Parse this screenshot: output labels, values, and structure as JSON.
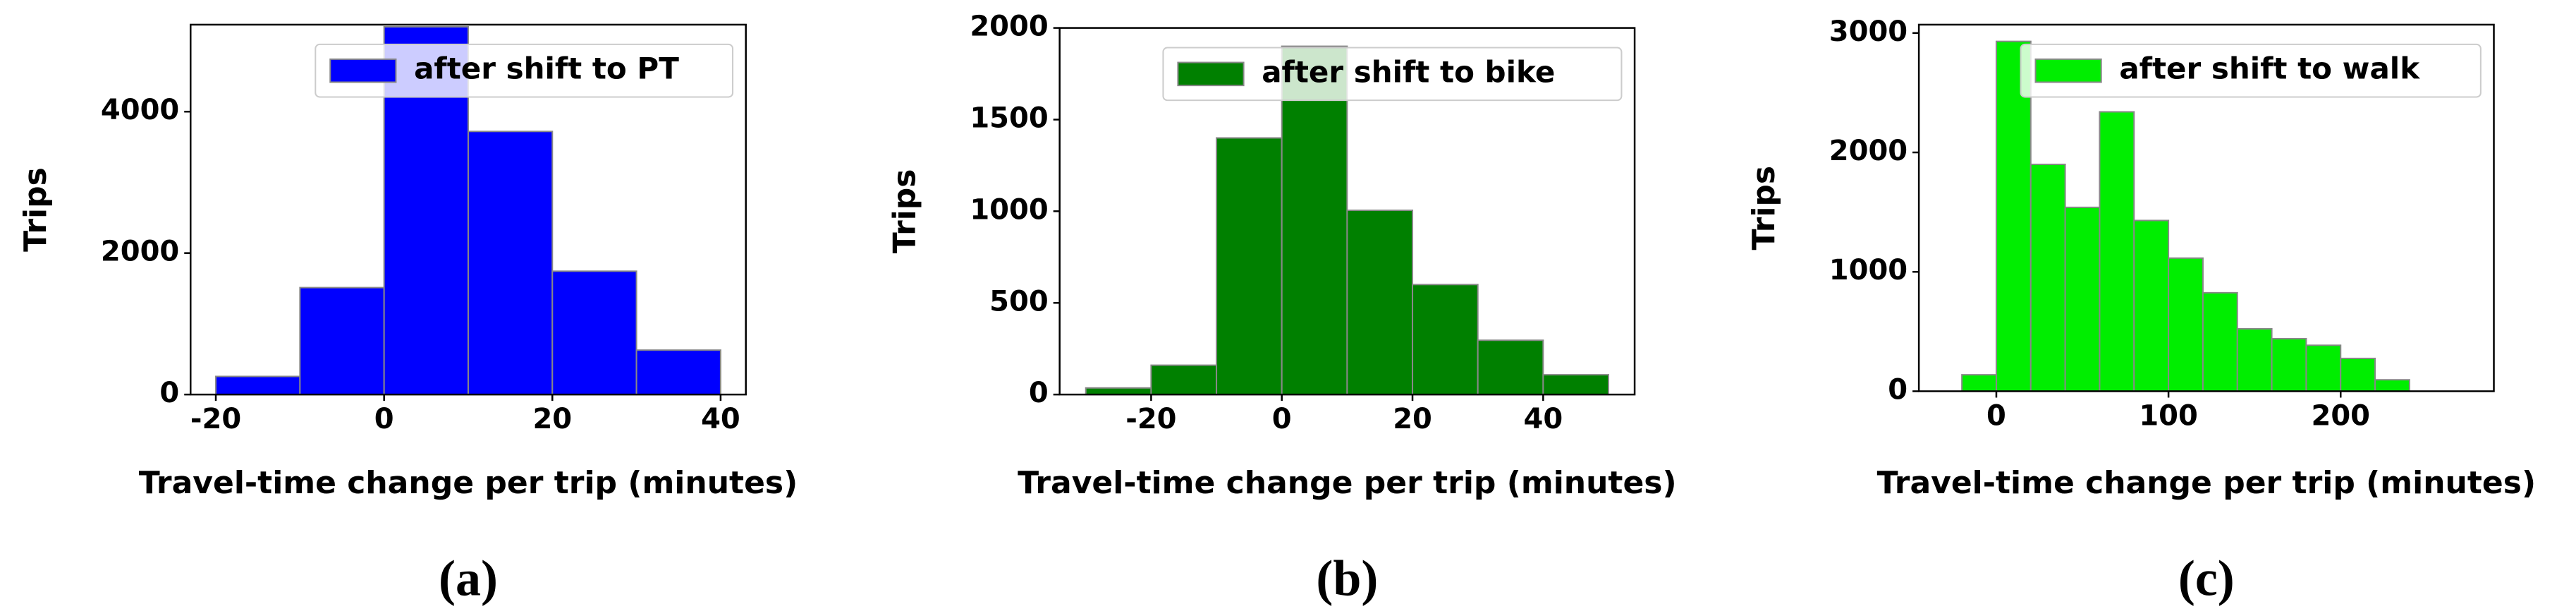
{
  "chart_data": [
    {
      "type": "histogram",
      "caption": "(a)",
      "xlabel": "Travel-time change per trip (minutes)",
      "ylabel": "Trips",
      "series": [
        {
          "name": "after shift to PT",
          "color": "#0000ff",
          "values": [
            256,
            1512,
            5200,
            3720,
            1744,
            628
          ]
        }
      ],
      "bins": [
        -20,
        -10,
        0,
        10,
        20,
        30,
        40
      ],
      "xlim": [
        -23,
        43
      ],
      "xticks": [
        -20,
        0,
        20,
        40
      ],
      "ylim": [
        0,
        5230
      ],
      "yticks": [
        0,
        2000,
        4000
      ],
      "legend": "upper right"
    },
    {
      "type": "histogram",
      "caption": "(b)",
      "xlabel": "Travel-time change per trip (minutes)",
      "ylabel": "Trips",
      "series": [
        {
          "name": "after shift to bike",
          "color": "#008000",
          "values": [
            36,
            160,
            1400,
            1900,
            1005,
            600,
            296,
            108
          ]
        }
      ],
      "bins": [
        -30,
        -20,
        -10,
        0,
        10,
        20,
        30,
        40,
        50
      ],
      "xlim": [
        -34,
        54
      ],
      "xticks": [
        -20,
        0,
        20,
        40
      ],
      "ylim": [
        0,
        2000
      ],
      "yticks": [
        0,
        500,
        1000,
        1500,
        2000
      ],
      "legend": "upper right"
    },
    {
      "type": "histogram",
      "caption": "(c)",
      "xlabel": "Travel-time change per trip (minutes)",
      "ylabel": "Trips",
      "series": [
        {
          "name": "after shift to walk",
          "color": "#00ee00",
          "values": [
            138,
            2930,
            1900,
            1540,
            2340,
            1430,
            1115,
            825,
            523,
            440,
            385,
            275,
            96
          ]
        }
      ],
      "bins": [
        -20,
        0,
        20,
        40,
        60,
        80,
        100,
        120,
        140,
        160,
        180,
        200,
        220,
        240
      ],
      "xlim": [
        -45,
        289
      ],
      "xticks": [
        0,
        100,
        200
      ],
      "ylim": [
        0,
        3070
      ],
      "yticks": [
        0,
        1000,
        2000,
        3000
      ],
      "legend": "upper right"
    }
  ]
}
